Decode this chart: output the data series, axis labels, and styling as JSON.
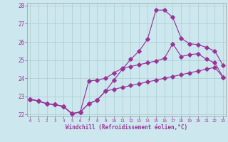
{
  "xlabel": "Windchill (Refroidissement éolien,°C)",
  "bg_color": "#cce8ee",
  "grid_color": "#aacccc",
  "line_color": "#993399",
  "xmin": 0,
  "xmax": 23,
  "ymin": 22,
  "ymax": 28,
  "yticks": [
    22,
    23,
    24,
    25,
    26,
    27,
    28
  ],
  "curve1_x": [
    0,
    1,
    2,
    3,
    4,
    5,
    6,
    7,
    8,
    9,
    10,
    11,
    12,
    13,
    14,
    15,
    16,
    17,
    18,
    19,
    20,
    21,
    22,
    23
  ],
  "curve1_y": [
    22.85,
    22.75,
    22.6,
    22.55,
    22.45,
    22.05,
    22.15,
    22.6,
    22.8,
    23.3,
    23.9,
    24.5,
    25.05,
    25.5,
    26.15,
    27.75,
    27.75,
    27.35,
    26.2,
    25.9,
    25.85,
    25.7,
    25.5,
    24.7
  ],
  "curve2_x": [
    0,
    1,
    2,
    3,
    4,
    5,
    6,
    7,
    8,
    9,
    10,
    11,
    12,
    13,
    14,
    15,
    16,
    17,
    18,
    19,
    20,
    21,
    22,
    23
  ],
  "curve2_y": [
    22.85,
    22.75,
    22.6,
    22.55,
    22.45,
    22.05,
    22.15,
    23.85,
    23.9,
    24.0,
    24.3,
    24.55,
    24.65,
    24.75,
    24.85,
    24.95,
    25.1,
    25.9,
    25.2,
    25.3,
    25.35,
    25.05,
    24.85,
    24.05
  ],
  "curve3_x": [
    0,
    1,
    2,
    3,
    4,
    5,
    6,
    7,
    8,
    9,
    10,
    11,
    12,
    13,
    14,
    15,
    16,
    17,
    18,
    19,
    20,
    21,
    22,
    23
  ],
  "curve3_y": [
    22.85,
    22.75,
    22.6,
    22.55,
    22.45,
    22.05,
    22.15,
    22.6,
    22.8,
    23.3,
    23.4,
    23.5,
    23.6,
    23.7,
    23.8,
    23.9,
    24.0,
    24.1,
    24.2,
    24.3,
    24.4,
    24.5,
    24.6,
    24.05
  ]
}
